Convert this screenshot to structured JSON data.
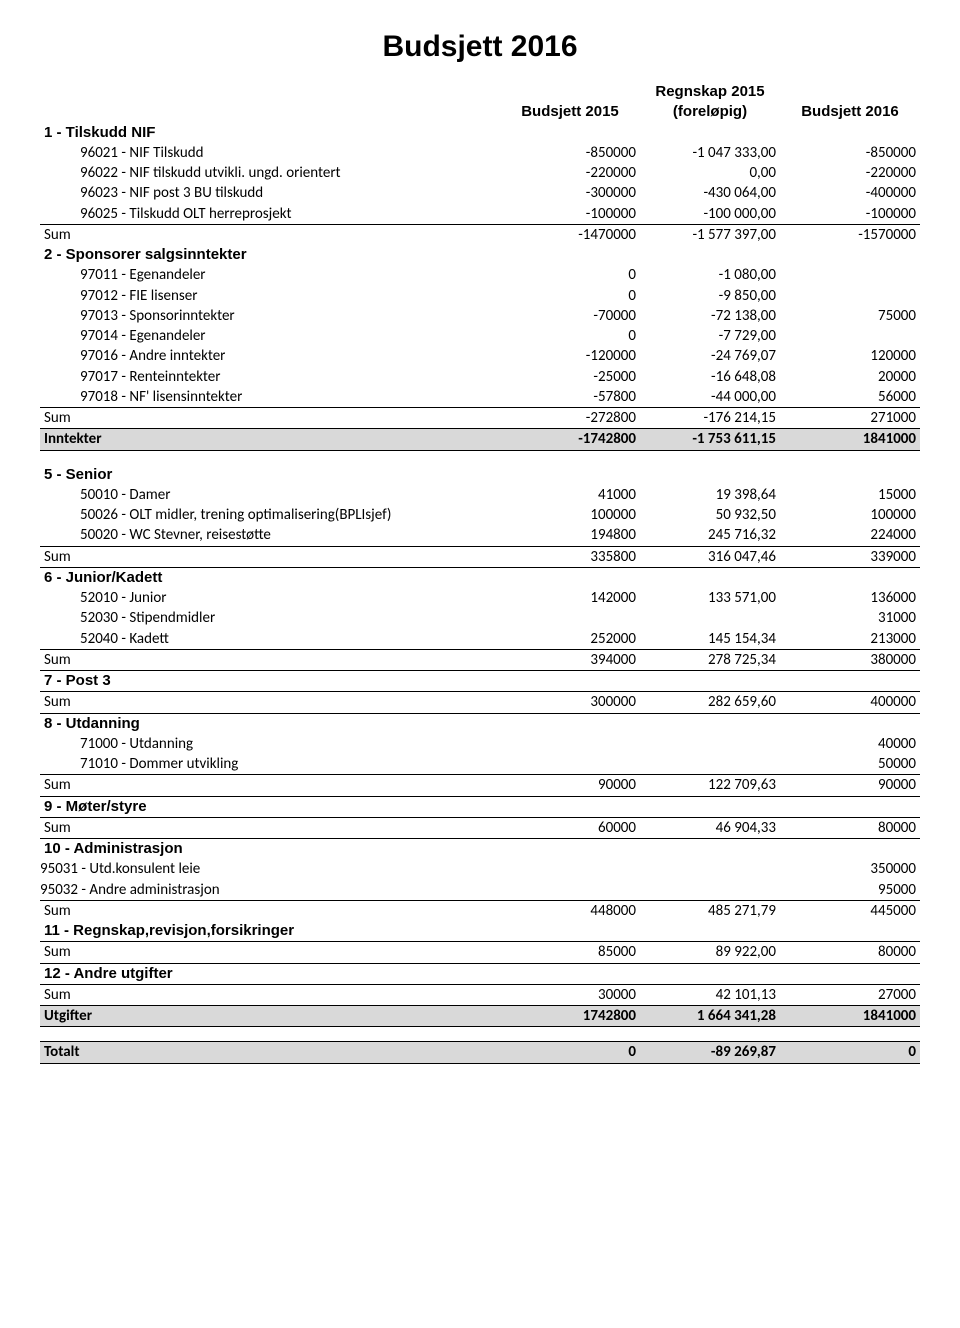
{
  "title": "Budsjett 2016",
  "columns": {
    "c1": "Budsjett 2015",
    "c2a": "Regnskap 2015",
    "c2b": "(foreløpig)",
    "c3": "Budsjett 2016"
  },
  "sec1": {
    "header": "1 - Tilskudd NIF",
    "r1": {
      "l": "96021 - NIF Tilskudd",
      "a": "-850000",
      "b": "-1 047 333,00",
      "c": "-850000"
    },
    "r2": {
      "l": "96022 - NIF tilskudd utvikli. ungd. orientert",
      "a": "-220000",
      "b": "0,00",
      "c": "-220000"
    },
    "r3": {
      "l": "96023 - NIF post 3 BU tilskudd",
      "a": "-300000",
      "b": "-430 064,00",
      "c": "-400000"
    },
    "r4": {
      "l": "96025 - Tilskudd OLT herreprosjekt",
      "a": "-100000",
      "b": "-100 000,00",
      "c": "-100000"
    },
    "sum": {
      "l": "Sum",
      "a": "-1470000",
      "b": "-1 577 397,00",
      "c": "-1570000"
    }
  },
  "sec2": {
    "header": "2 - Sponsorer salgsinntekter",
    "r1": {
      "l": "97011 - Egenandeler",
      "a": "0",
      "b": "-1 080,00",
      "c": ""
    },
    "r2": {
      "l": "97012 - FIE lisenser",
      "a": "0",
      "b": "-9 850,00",
      "c": ""
    },
    "r3": {
      "l": "97013 - Sponsorinntekter",
      "a": "-70000",
      "b": "-72 138,00",
      "c": "75000"
    },
    "r4": {
      "l": "97014 - Egenandeler",
      "a": "0",
      "b": "-7 729,00",
      "c": ""
    },
    "r5": {
      "l": "97016 - Andre inntekter",
      "a": "-120000",
      "b": "-24 769,07",
      "c": "120000"
    },
    "r6": {
      "l": "97017 - Renteinntekter",
      "a": "-25000",
      "b": "-16 648,08",
      "c": "20000"
    },
    "r7": {
      "l": "97018 - NF' lisensinntekter",
      "a": "-57800",
      "b": "-44 000,00",
      "c": "56000"
    },
    "sum": {
      "l": "Sum",
      "a": "-272800",
      "b": "-176 214,15",
      "c": "271000"
    }
  },
  "inntekter": {
    "l": "Inntekter",
    "a": "-1742800",
    "b": "-1 753 611,15",
    "c": "1841000"
  },
  "sec5": {
    "header": "5 - Senior",
    "r1": {
      "l": "50010 - Damer",
      "a": "41000",
      "b": "19 398,64",
      "c": "15000"
    },
    "r2": {
      "l": "50026 - OLT midler, trening optimalisering(BPLIsjef)",
      "a": "100000",
      "b": "50 932,50",
      "c": "100000"
    },
    "r3": {
      "l": "50020 - WC Stevner, reisestøtte",
      "a": "194800",
      "b": "245 716,32",
      "c": "224000"
    },
    "sum": {
      "l": "Sum",
      "a": "335800",
      "b": "316 047,46",
      "c": "339000"
    }
  },
  "sec6": {
    "header": "6 - Junior/Kadett",
    "r1": {
      "l": "52010 - Junior",
      "a": "142000",
      "b": "133 571,00",
      "c": "136000"
    },
    "r2": {
      "l": "52030 - Stipendmidler",
      "a": "",
      "b": "",
      "c": "31000"
    },
    "r3": {
      "l": "52040 - Kadett",
      "a": "252000",
      "b": "145 154,34",
      "c": "213000"
    },
    "sum": {
      "l": "Sum",
      "a": "394000",
      "b": "278 725,34",
      "c": "380000"
    }
  },
  "sec7": {
    "header": "7 - Post 3",
    "sum": {
      "l": "Sum",
      "a": "300000",
      "b": "282 659,60",
      "c": "400000"
    }
  },
  "sec8": {
    "header": "8 - Utdanning",
    "r1": {
      "l": "71000 - Utdanning",
      "a": "",
      "b": "",
      "c": "40000"
    },
    "r2": {
      "l": "71010 - Dommer utvikling",
      "a": "",
      "b": "",
      "c": "50000"
    },
    "sum": {
      "l": "Sum",
      "a": "90000",
      "b": "122 709,63",
      "c": "90000"
    }
  },
  "sec9": {
    "header": "9 - Møter/styre",
    "sum": {
      "l": "Sum",
      "a": "60000",
      "b": "46 904,33",
      "c": "80000"
    }
  },
  "sec10": {
    "header": "10 - Administrasjon",
    "r1": {
      "l": "95031 - Utd.konsulent leie",
      "a": "",
      "b": "",
      "c": "350000"
    },
    "r2": {
      "l": "95032 - Andre administrasjon",
      "a": "",
      "b": "",
      "c": "95000"
    },
    "sum": {
      "l": "Sum",
      "a": "448000",
      "b": "485 271,79",
      "c": "445000"
    }
  },
  "sec11": {
    "header": "11 - Regnskap,revisjon,forsikringer",
    "sum": {
      "l": "Sum",
      "a": "85000",
      "b": "89 922,00",
      "c": "80000"
    }
  },
  "sec12": {
    "header": "12 - Andre utgifter",
    "sum": {
      "l": "Sum",
      "a": "30000",
      "b": "42 101,13",
      "c": "27000"
    }
  },
  "utgifter": {
    "l": "Utgifter",
    "a": "1742800",
    "b": "1 664 341,28",
    "c": "1841000"
  },
  "totalt": {
    "l": "Totalt",
    "a": "0",
    "b": "-89 269,87",
    "c": "0"
  }
}
